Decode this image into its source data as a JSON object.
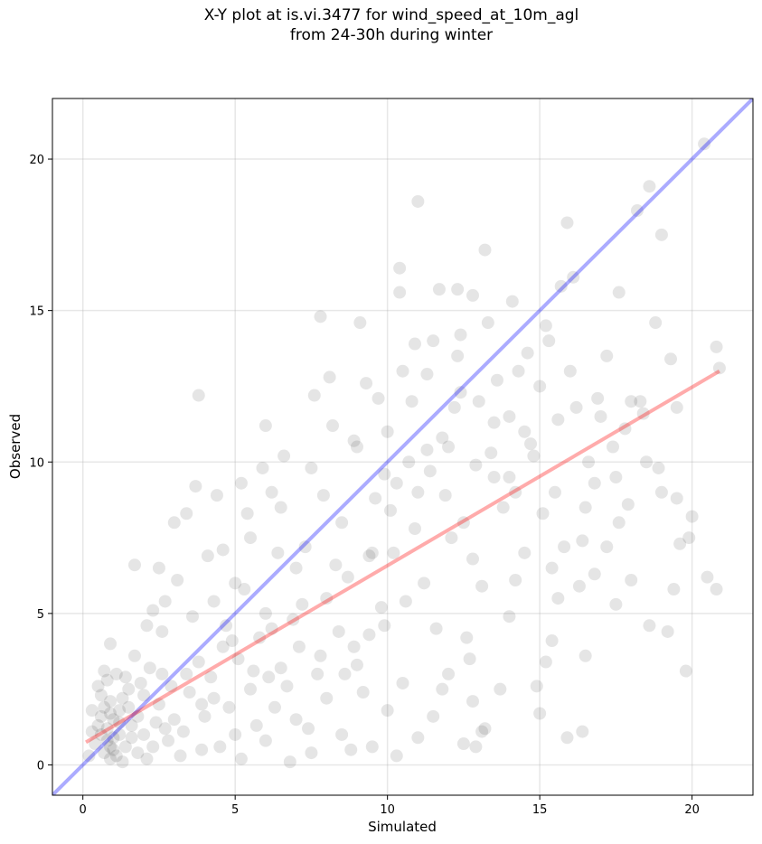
{
  "chart_data": {
    "type": "scatter",
    "title": "X-Y plot at is.vi.3477 for wind_speed_at_10m_agl",
    "subtitle": "from 24-30h during winter",
    "xlabel": "Simulated",
    "ylabel": "Observed",
    "xlim": [
      -1.0,
      22.0
    ],
    "ylim": [
      -1.0,
      22.0
    ],
    "xticks": [
      0,
      5,
      10,
      15,
      20
    ],
    "yticks": [
      0,
      5,
      10,
      15,
      20
    ],
    "grid": true,
    "point_color": "#000000",
    "point_alpha": 0.1,
    "reference_line": {
      "slope": 1,
      "intercept": 0,
      "color": "#0000ff",
      "alpha": 0.33
    },
    "fit_line": {
      "x": [
        0.1,
        20.9
      ],
      "y": [
        0.75,
        13.0
      ],
      "color": "#ff0000",
      "alpha": 0.33
    },
    "points": [
      [
        0.8,
        1.2
      ],
      [
        1.0,
        0.9
      ],
      [
        0.6,
        1.6
      ],
      [
        0.9,
        2.1
      ],
      [
        1.2,
        1.0
      ],
      [
        0.7,
        0.4
      ],
      [
        0.5,
        2.6
      ],
      [
        1.1,
        3.0
      ],
      [
        0.3,
        1.8
      ],
      [
        1.4,
        0.6
      ],
      [
        0.9,
        0.2
      ],
      [
        0.6,
        1.0
      ],
      [
        1.0,
        1.5
      ],
      [
        0.8,
        2.8
      ],
      [
        1.3,
        2.2
      ],
      [
        0.4,
        0.7
      ],
      [
        0.2,
        0.3
      ],
      [
        1.6,
        1.3
      ],
      [
        0.7,
        3.1
      ],
      [
        1.0,
        0.5
      ],
      [
        0.9,
        4.0
      ],
      [
        0.5,
        1.3
      ],
      [
        1.2,
        1.8
      ],
      [
        0.8,
        0.8
      ],
      [
        1.1,
        0.3
      ],
      [
        1.5,
        2.5
      ],
      [
        0.6,
        2.3
      ],
      [
        0.3,
        1.1
      ],
      [
        1.3,
        0.1
      ],
      [
        0.9,
        1.7
      ],
      [
        2.0,
        1.0
      ],
      [
        2.5,
        2.0
      ],
      [
        3.0,
        1.5
      ],
      [
        1.8,
        0.4
      ],
      [
        2.2,
        3.2
      ],
      [
        2.8,
        0.8
      ],
      [
        3.5,
        2.4
      ],
      [
        1.9,
        2.7
      ],
      [
        2.6,
        4.4
      ],
      [
        3.2,
        0.3
      ],
      [
        4.0,
        1.6
      ],
      [
        4.5,
        0.6
      ],
      [
        3.8,
        3.4
      ],
      [
        2.1,
        0.2
      ],
      [
        3.3,
        1.1
      ],
      [
        4.2,
        2.9
      ],
      [
        2.4,
        1.4
      ],
      [
        1.7,
        3.6
      ],
      [
        3.6,
        4.9
      ],
      [
        4.8,
        1.9
      ],
      [
        2.9,
        2.6
      ],
      [
        1.6,
        0.9
      ],
      [
        2.3,
        5.1
      ],
      [
        3.1,
        6.1
      ],
      [
        4.6,
        3.9
      ],
      [
        3.7,
        9.2
      ],
      [
        3.8,
        12.2
      ],
      [
        1.7,
        6.6
      ],
      [
        2.1,
        4.6
      ],
      [
        2.7,
        5.4
      ],
      [
        5.0,
        1.0
      ],
      [
        5.5,
        2.5
      ],
      [
        6.0,
        0.8
      ],
      [
        6.5,
        3.2
      ],
      [
        7.0,
        1.5
      ],
      [
        7.5,
        0.4
      ],
      [
        8.0,
        2.2
      ],
      [
        8.5,
        1.0
      ],
      [
        9.0,
        3.3
      ],
      [
        9.5,
        0.6
      ],
      [
        10.0,
        1.8
      ],
      [
        10.5,
        2.7
      ],
      [
        11.0,
        0.9
      ],
      [
        11.5,
        1.6
      ],
      [
        12.0,
        3.0
      ],
      [
        12.5,
        0.7
      ],
      [
        12.8,
        2.1
      ],
      [
        13.2,
        1.2
      ],
      [
        6.3,
        1.9
      ],
      [
        7.8,
        3.6
      ],
      [
        9.2,
        2.4
      ],
      [
        10.3,
        0.3
      ],
      [
        11.8,
        2.5
      ],
      [
        5.2,
        0.2
      ],
      [
        6.8,
        0.1
      ],
      [
        8.8,
        0.5
      ],
      [
        5.0,
        6.0
      ],
      [
        5.5,
        7.5
      ],
      [
        6.0,
        5.0
      ],
      [
        6.5,
        8.5
      ],
      [
        7.0,
        6.5
      ],
      [
        7.5,
        9.8
      ],
      [
        8.0,
        5.5
      ],
      [
        8.5,
        8.0
      ],
      [
        9.0,
        10.5
      ],
      [
        9.5,
        7.0
      ],
      [
        5.8,
        4.2
      ],
      [
        6.2,
        9.0
      ],
      [
        6.9,
        4.8
      ],
      [
        7.3,
        7.2
      ],
      [
        8.2,
        11.2
      ],
      [
        8.7,
        6.2
      ],
      [
        9.3,
        12.6
      ],
      [
        9.8,
        5.2
      ],
      [
        5.4,
        8.3
      ],
      [
        6.6,
        10.2
      ],
      [
        7.6,
        12.2
      ],
      [
        8.4,
        4.4
      ],
      [
        9.1,
        14.6
      ],
      [
        7.8,
        14.8
      ],
      [
        4.6,
        7.1
      ],
      [
        5.2,
        9.3
      ],
      [
        4.3,
        5.4
      ],
      [
        6.0,
        11.2
      ],
      [
        7.1,
        3.9
      ],
      [
        5.6,
        3.1
      ],
      [
        10.0,
        11.0
      ],
      [
        10.5,
        13.0
      ],
      [
        11.0,
        9.0
      ],
      [
        11.5,
        14.0
      ],
      [
        12.0,
        10.5
      ],
      [
        12.5,
        8.0
      ],
      [
        13.0,
        12.0
      ],
      [
        13.5,
        9.5
      ],
      [
        14.0,
        11.5
      ],
      [
        10.2,
        7.0
      ],
      [
        10.8,
        12.0
      ],
      [
        11.2,
        6.0
      ],
      [
        11.8,
        10.8
      ],
      [
        12.3,
        13.5
      ],
      [
        12.8,
        6.8
      ],
      [
        13.3,
        14.6
      ],
      [
        13.8,
        8.5
      ],
      [
        14.3,
        13.0
      ],
      [
        10.4,
        15.6
      ],
      [
        10.4,
        16.4
      ],
      [
        11.0,
        18.6
      ],
      [
        12.3,
        15.7
      ],
      [
        12.8,
        15.5
      ],
      [
        13.2,
        17.0
      ],
      [
        10.1,
        8.4
      ],
      [
        10.6,
        5.4
      ],
      [
        11.6,
        4.5
      ],
      [
        12.1,
        7.5
      ],
      [
        12.6,
        4.2
      ],
      [
        13.1,
        5.9
      ],
      [
        9.9,
        9.6
      ],
      [
        11.3,
        12.9
      ],
      [
        14.5,
        7.0
      ],
      [
        14.0,
        4.9
      ],
      [
        14.0,
        9.5
      ],
      [
        14.5,
        11.0
      ],
      [
        15.0,
        12.5
      ],
      [
        15.5,
        9.0
      ],
      [
        16.0,
        13.0
      ],
      [
        16.5,
        8.5
      ],
      [
        17.0,
        11.5
      ],
      [
        17.5,
        9.5
      ],
      [
        15.2,
        14.5
      ],
      [
        15.8,
        7.2
      ],
      [
        16.2,
        11.8
      ],
      [
        16.8,
        6.3
      ],
      [
        17.2,
        13.5
      ],
      [
        14.8,
        10.2
      ],
      [
        15.6,
        5.5
      ],
      [
        16.6,
        10.0
      ],
      [
        17.6,
        8.0
      ],
      [
        15.4,
        6.5
      ],
      [
        16.1,
        16.1
      ],
      [
        15.9,
        17.9
      ],
      [
        17.6,
        15.6
      ],
      [
        18.0,
        12.0
      ],
      [
        18.5,
        10.0
      ],
      [
        19.0,
        9.0
      ],
      [
        19.5,
        11.8
      ],
      [
        20.0,
        8.2
      ],
      [
        18.2,
        18.3
      ],
      [
        18.6,
        19.1
      ],
      [
        19.0,
        17.5
      ],
      [
        20.4,
        20.5
      ],
      [
        18.8,
        14.6
      ],
      [
        20.8,
        13.8
      ],
      [
        20.9,
        13.1
      ],
      [
        20.5,
        6.2
      ],
      [
        20.8,
        5.8
      ],
      [
        19.8,
        3.1
      ],
      [
        19.2,
        4.4
      ],
      [
        18.6,
        4.6
      ],
      [
        19.4,
        5.8
      ],
      [
        19.6,
        7.3
      ],
      [
        18.0,
        6.1
      ],
      [
        17.5,
        5.3
      ],
      [
        16.5,
        3.6
      ],
      [
        16.4,
        1.1
      ],
      [
        15.2,
        3.4
      ],
      [
        15.0,
        1.7
      ],
      [
        15.9,
        0.9
      ],
      [
        14.9,
        2.6
      ],
      [
        15.4,
        4.1
      ],
      [
        16.3,
        5.9
      ],
      [
        17.2,
        7.2
      ],
      [
        18.4,
        11.6
      ],
      [
        19.3,
        13.4
      ],
      [
        19.9,
        7.5
      ],
      [
        16.8,
        9.3
      ],
      [
        17.8,
        11.1
      ],
      [
        14.2,
        6.1
      ],
      [
        13.7,
        2.5
      ],
      [
        13.1,
        1.1
      ],
      [
        12.9,
        0.6
      ],
      [
        12.7,
        3.5
      ],
      [
        9.4,
        4.3
      ],
      [
        8.6,
        3.0
      ],
      [
        7.4,
        1.2
      ],
      [
        6.1,
        2.9
      ],
      [
        5.3,
        5.8
      ],
      [
        4.9,
        4.1
      ],
      [
        4.4,
        8.9
      ],
      [
        3.4,
        8.3
      ],
      [
        3.0,
        8.0
      ],
      [
        2.5,
        6.5
      ],
      [
        9.6,
        8.8
      ],
      [
        10.7,
        10.0
      ],
      [
        11.4,
        9.7
      ],
      [
        12.2,
        11.8
      ],
      [
        13.4,
        10.3
      ],
      [
        14.6,
        13.6
      ],
      [
        15.3,
        14.0
      ],
      [
        15.7,
        15.8
      ],
      [
        14.1,
        15.3
      ],
      [
        11.7,
        15.7
      ],
      [
        12.4,
        14.2
      ],
      [
        13.6,
        12.7
      ],
      [
        9.7,
        12.1
      ],
      [
        10.9,
        13.9
      ],
      [
        8.9,
        10.7
      ],
      [
        8.1,
        12.8
      ],
      [
        7.9,
        8.9
      ],
      [
        6.4,
        7.0
      ],
      [
        5.9,
        9.8
      ],
      [
        4.1,
        6.9
      ],
      [
        4.7,
        4.6
      ],
      [
        3.9,
        2.0
      ],
      [
        2.6,
        3.0
      ],
      [
        2.0,
        2.3
      ],
      [
        1.5,
        1.9
      ],
      [
        1.2,
        1.4
      ],
      [
        0.9,
        0.6
      ],
      [
        0.7,
        1.9
      ],
      [
        1.4,
        2.9
      ],
      [
        1.8,
        1.6
      ],
      [
        2.3,
        0.6
      ],
      [
        2.7,
        1.2
      ],
      [
        3.4,
        3.0
      ],
      [
        3.9,
        0.5
      ],
      [
        4.3,
        2.2
      ],
      [
        5.1,
        3.5
      ],
      [
        5.7,
        1.3
      ],
      [
        6.2,
        4.5
      ],
      [
        6.7,
        2.6
      ],
      [
        7.2,
        5.3
      ],
      [
        7.7,
        3.0
      ],
      [
        8.3,
        6.6
      ],
      [
        8.9,
        3.9
      ],
      [
        9.4,
        6.9
      ],
      [
        9.9,
        4.6
      ],
      [
        10.3,
        9.3
      ],
      [
        10.9,
        7.8
      ],
      [
        11.3,
        10.4
      ],
      [
        11.9,
        8.9
      ],
      [
        12.4,
        12.3
      ],
      [
        12.9,
        9.9
      ],
      [
        13.5,
        11.3
      ],
      [
        14.2,
        9.0
      ],
      [
        14.7,
        10.6
      ],
      [
        15.1,
        8.3
      ],
      [
        15.6,
        11.4
      ],
      [
        16.4,
        7.4
      ],
      [
        16.9,
        12.1
      ],
      [
        17.4,
        10.5
      ],
      [
        17.9,
        8.6
      ],
      [
        18.3,
        12.0
      ],
      [
        18.9,
        9.8
      ],
      [
        19.5,
        8.8
      ]
    ]
  }
}
